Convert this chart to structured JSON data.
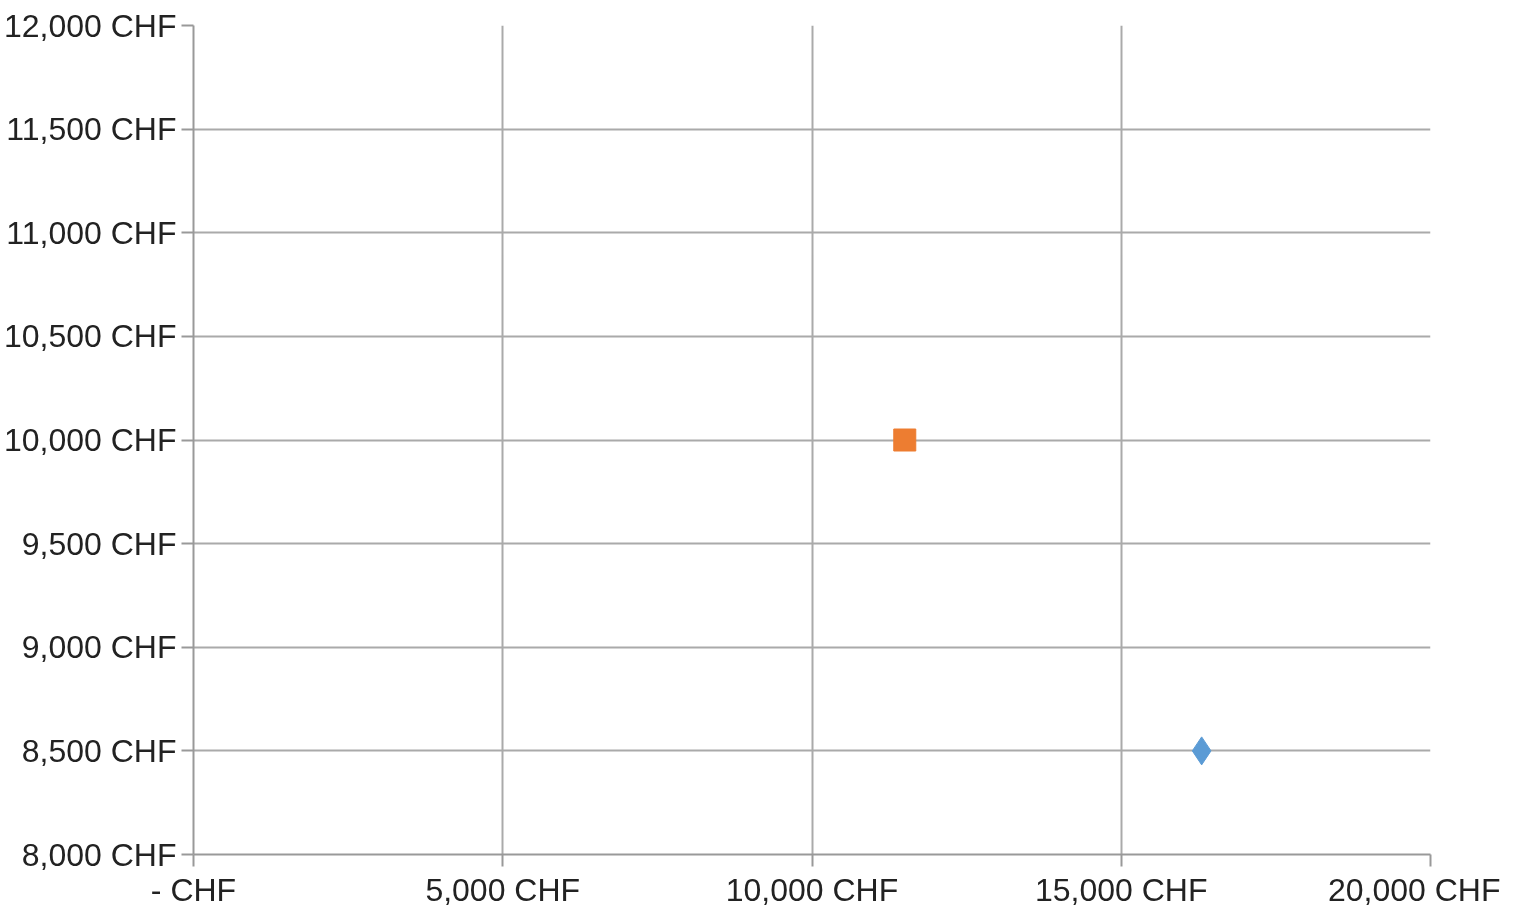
{
  "chart_data": {
    "type": "scatter",
    "grid": true,
    "xlim": [
      0,
      20000
    ],
    "ylim": [
      8000,
      12000
    ],
    "xticks": [
      {
        "value": 0,
        "label": "- CHF"
      },
      {
        "value": 5000,
        "label": "5,000 CHF"
      },
      {
        "value": 10000,
        "label": "10,000 CHF"
      },
      {
        "value": 15000,
        "label": "15,000 CHF"
      },
      {
        "value": 20000,
        "label": "20,000 CHF"
      }
    ],
    "yticks": [
      {
        "value": 8000,
        "label": "8,000 CHF"
      },
      {
        "value": 8500,
        "label": "8,500 CHF"
      },
      {
        "value": 9000,
        "label": "9,000 CHF"
      },
      {
        "value": 9500,
        "label": "9,500 CHF"
      },
      {
        "value": 10000,
        "label": "10,000 CHF"
      },
      {
        "value": 10500,
        "label": "10,500 CHF"
      },
      {
        "value": 11000,
        "label": "11,000 CHF"
      },
      {
        "value": 11500,
        "label": "11,500 CHF"
      },
      {
        "value": 12000,
        "label": "12,000 CHF"
      }
    ],
    "series": [
      {
        "color": "#5b9bd5",
        "marker": "diamond",
        "x": [
          16300
        ],
        "values": [
          8500
        ]
      },
      {
        "color": "#ed7d31",
        "marker": "square",
        "x": [
          11500
        ],
        "values": [
          10000
        ]
      }
    ]
  }
}
